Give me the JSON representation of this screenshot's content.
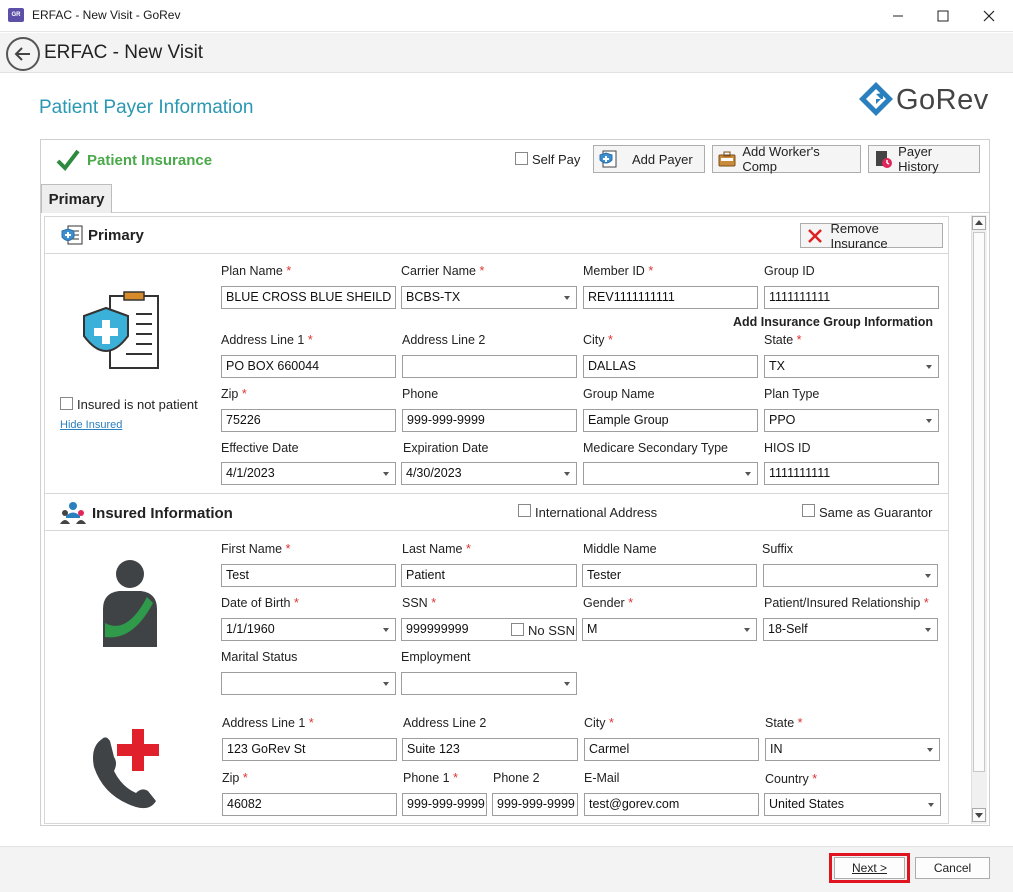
{
  "window": {
    "title": "ERFAC - New Visit - GoRev",
    "app_icon": "GR"
  },
  "header": {
    "title": "ERFAC - New Visit"
  },
  "page": {
    "section_title": "Patient Payer Information",
    "logo_text": "GoRev"
  },
  "toolbar": {
    "insurance_label": "Patient Insurance",
    "self_pay_label": "Self Pay",
    "add_payer_label": "Add Payer",
    "add_workers_comp_label": "Add Worker's Comp",
    "payer_history_label": "Payer History"
  },
  "tabs": [
    {
      "label": "Primary"
    }
  ],
  "primary": {
    "title": "Primary",
    "remove_label": "Remove Insurance",
    "insured_not_patient_label": "Insured is not patient",
    "hide_insured_label": "Hide Insured",
    "add_group_info_label": "Add Insurance Group Information",
    "plan_name": {
      "label": "Plan Name",
      "value": "BLUE CROSS BLUE SHEILD"
    },
    "carrier_name": {
      "label": "Carrier Name",
      "value": "BCBS-TX"
    },
    "member_id": {
      "label": "Member ID",
      "value": "REV1111111111"
    },
    "group_id": {
      "label": "Group ID",
      "value": "1111111111"
    },
    "address1": {
      "label": "Address Line 1",
      "value": "PO BOX 660044"
    },
    "address2": {
      "label": "Address Line 2",
      "value": ""
    },
    "city": {
      "label": "City",
      "value": "DALLAS"
    },
    "state": {
      "label": "State",
      "value": "TX"
    },
    "zip": {
      "label": "Zip",
      "value": "75226"
    },
    "phone": {
      "label": "Phone",
      "value": "999-999-9999"
    },
    "group_name": {
      "label": "Group Name",
      "value": "Eample Group"
    },
    "plan_type": {
      "label": "Plan Type",
      "value": "PPO"
    },
    "effective_date": {
      "label": "Effective Date",
      "value": "4/1/2023"
    },
    "expiration_date": {
      "label": "Expiration Date",
      "value": "4/30/2023"
    },
    "medicare_secondary": {
      "label": "Medicare Secondary Type",
      "value": ""
    },
    "hios_id": {
      "label": "HIOS ID",
      "value": "1111111111"
    }
  },
  "insured": {
    "title": "Insured Information",
    "international_label": "International Address",
    "same_as_guarantor_label": "Same as Guarantor",
    "first_name": {
      "label": "First Name",
      "value": "Test"
    },
    "last_name": {
      "label": "Last Name",
      "value": "Patient"
    },
    "middle_name": {
      "label": "Middle Name",
      "value": "Tester"
    },
    "suffix": {
      "label": "Suffix",
      "value": ""
    },
    "dob": {
      "label": "Date of Birth",
      "value": "1/1/1960"
    },
    "ssn": {
      "label": "SSN",
      "value": "999999999",
      "no_ssn_label": "No SSN"
    },
    "gender": {
      "label": "Gender",
      "value": "M"
    },
    "relationship": {
      "label": "Patient/Insured Relationship",
      "value": "18-Self"
    },
    "marital_status": {
      "label": "Marital Status",
      "value": ""
    },
    "employment": {
      "label": "Employment",
      "value": ""
    },
    "address1": {
      "label": "Address Line 1",
      "value": "123 GoRev St"
    },
    "address2": {
      "label": "Address Line 2",
      "value": "Suite 123"
    },
    "city": {
      "label": "City",
      "value": "Carmel"
    },
    "state": {
      "label": "State",
      "value": "IN"
    },
    "zip": {
      "label": "Zip",
      "value": "46082"
    },
    "phone1": {
      "label": "Phone 1",
      "value": "999-999-9999"
    },
    "phone2": {
      "label": "Phone 2",
      "value": "999-999-9999"
    },
    "email": {
      "label": "E-Mail",
      "value": "test@gorev.com"
    },
    "country": {
      "label": "Country",
      "value": "United States"
    }
  },
  "footer": {
    "next_label": "Next >",
    "cancel_label": "Cancel"
  },
  "colors": {
    "accent": "#2a97b3",
    "success": "#4aa94a",
    "required": "#d33333",
    "highlight": "#e0141e"
  }
}
